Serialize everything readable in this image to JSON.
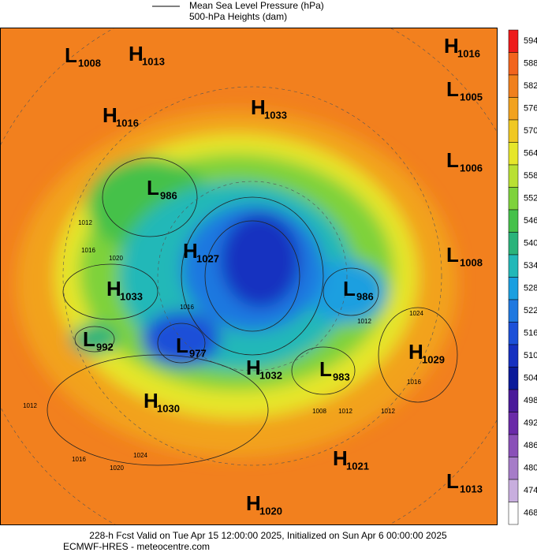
{
  "legend": {
    "lines": [
      "Mean Sea Level Pressure (hPa)",
      "500-hPa Heights (dam)"
    ]
  },
  "colorbar": {
    "ticks": [
      594,
      588,
      582,
      576,
      570,
      564,
      558,
      552,
      546,
      540,
      534,
      528,
      522,
      516,
      510,
      504,
      498,
      492,
      486,
      480,
      474,
      468
    ],
    "colors": [
      "#ee1b1b",
      "#f2641e",
      "#f0801e",
      "#f2a21f",
      "#f0c822",
      "#e6e62a",
      "#b9e033",
      "#7ed23b",
      "#45c14a",
      "#2ab37a",
      "#22b8b8",
      "#1a9fe0",
      "#1f78e0",
      "#1c50d8",
      "#1530c0",
      "#0a1a9a",
      "#4a1a9a",
      "#6a2aa8",
      "#8a50b8",
      "#a67cc8",
      "#c8aede",
      "#ffffff"
    ]
  },
  "centers": [
    {
      "letter": "L",
      "value": "1008"
    },
    {
      "letter": "H",
      "value": "1013"
    },
    {
      "letter": "H",
      "value": "1016"
    },
    {
      "letter": "L",
      "value": "1005"
    },
    {
      "letter": "H",
      "value": "1016"
    },
    {
      "letter": "H",
      "value": "1033"
    },
    {
      "letter": "L",
      "value": "1006"
    },
    {
      "letter": "L",
      "value": "986"
    },
    {
      "letter": "H",
      "value": "1027"
    },
    {
      "letter": "L",
      "value": "1008"
    },
    {
      "letter": "H",
      "value": "1033"
    },
    {
      "letter": "L",
      "value": "986"
    },
    {
      "letter": "L",
      "value": "992"
    },
    {
      "letter": "L",
      "value": "977"
    },
    {
      "letter": "H",
      "value": "1032"
    },
    {
      "letter": "L",
      "value": "983"
    },
    {
      "letter": "H",
      "value": "1029"
    },
    {
      "letter": "H",
      "value": "1030"
    },
    {
      "letter": "H",
      "value": "1021"
    },
    {
      "letter": "L",
      "value": "1013"
    },
    {
      "letter": "H",
      "value": "1020"
    }
  ],
  "contour_labels": [
    "1012",
    "1016",
    "1020",
    "1024",
    "1012",
    "1016",
    "1020",
    "1016",
    "1012",
    "1024",
    "1016",
    "1012",
    "1008",
    "1012"
  ],
  "footer": [
    "228-h Fcst Valid on Tue Apr 15 12:00:00 2025, Initialized on Sun Apr  6 00:00:00 2025",
    "ECMWF-HRES - meteocentre.com"
  ]
}
